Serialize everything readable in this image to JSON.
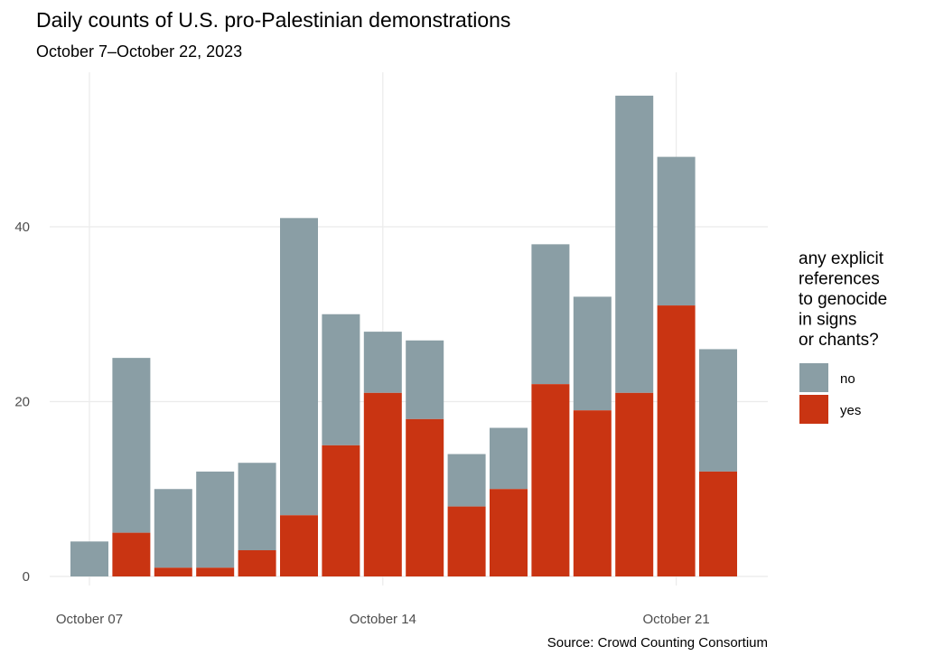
{
  "chart_data": {
    "type": "bar",
    "stacked": true,
    "title": "Daily counts of U.S. pro-Palestinian demonstrations",
    "subtitle": "October 7–October 22, 2023",
    "caption": "Source: Crowd Counting Consortium",
    "xlabel": "",
    "ylabel": "",
    "categories": [
      "2023-10-07",
      "2023-10-08",
      "2023-10-09",
      "2023-10-10",
      "2023-10-11",
      "2023-10-12",
      "2023-10-13",
      "2023-10-14",
      "2023-10-15",
      "2023-10-16",
      "2023-10-17",
      "2023-10-18",
      "2023-10-19",
      "2023-10-20",
      "2023-10-21",
      "2023-10-22"
    ],
    "x_ticks": [
      "October 07",
      "October 14",
      "October 21"
    ],
    "y_ticks": [
      "0",
      "20",
      "40"
    ],
    "ylim": [
      0,
      57
    ],
    "grid": true,
    "legend": {
      "title": "any explicit\nreferences\nto genocide\nin signs\nor chants?",
      "placement": "right"
    },
    "series": [
      {
        "name": "no",
        "color": "#8a9ea5",
        "values": [
          4,
          20,
          9,
          11,
          10,
          34,
          15,
          7,
          9,
          6,
          7,
          16,
          13,
          34,
          17,
          14
        ]
      },
      {
        "name": "yes",
        "color": "#c93412",
        "values": [
          0,
          5,
          1,
          1,
          3,
          7,
          15,
          21,
          18,
          8,
          10,
          22,
          19,
          21,
          31,
          12
        ]
      }
    ]
  }
}
